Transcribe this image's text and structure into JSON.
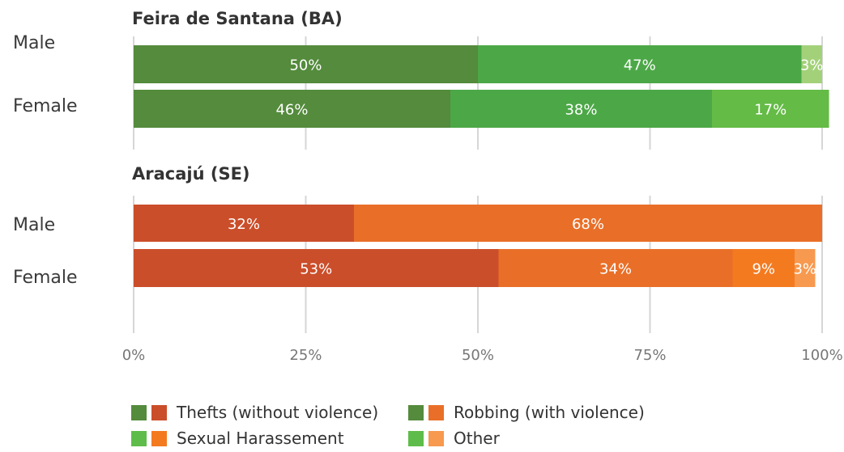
{
  "chart_data": {
    "type": "bar",
    "orientation": "horizontal",
    "stacked": true,
    "percent": true,
    "xlim": [
      0,
      100
    ],
    "xticks": [
      "0%",
      "25%",
      "50%",
      "75%",
      "100%"
    ],
    "grid": true,
    "legend_position": "bottom",
    "panels": [
      {
        "title": "Feira de Santana (BA)",
        "categories": [
          "Male",
          "Female"
        ],
        "series": [
          {
            "name": "Thefts (without violence)",
            "values": [
              50,
              46
            ],
            "labels": [
              "50%",
              "46%"
            ],
            "color": "#548b3c"
          },
          {
            "name": "Robbing (with violence)",
            "values": [
              47,
              38
            ],
            "labels": [
              "47%",
              "38%"
            ],
            "color": "#4ca847"
          },
          {
            "name": "Sexual Harassement",
            "values": [
              0,
              0
            ],
            "labels": [
              "",
              ""
            ],
            "color": "#5ebd4a"
          },
          {
            "name": "Other",
            "values": [
              3,
              17
            ],
            "labels": [
              "3%",
              "17%"
            ],
            "color_male": "#a3d17a",
            "color_female": "#64bb46"
          }
        ]
      },
      {
        "title": "Aracajú (SE)",
        "categories": [
          "Male",
          "Female"
        ],
        "series": [
          {
            "name": "Thefts (without violence)",
            "values": [
              32,
              53
            ],
            "labels": [
              "32%",
              "53%"
            ],
            "color": "#cb4e2a"
          },
          {
            "name": "Robbing (with violence)",
            "values": [
              68,
              34
            ],
            "labels": [
              "68%",
              "34%"
            ],
            "color": "#e96f28"
          },
          {
            "name": "Sexual Harassement",
            "values": [
              0,
              9
            ],
            "labels": [
              "",
              "9%"
            ],
            "color": "#f47a20"
          },
          {
            "name": "Other",
            "values": [
              0,
              3
            ],
            "labels": [
              "",
              "3%"
            ],
            "color": "#f7994f"
          }
        ]
      }
    ]
  },
  "legend": {
    "items": [
      {
        "label": "Thefts (without violence)",
        "colors": [
          "#548b3c",
          "#cb4e2a"
        ]
      },
      {
        "label": "Robbing (with violence)",
        "colors": [
          "#548b3c",
          "#e96f28"
        ]
      },
      {
        "label": "Sexual Harassement",
        "colors": [
          "#5ebd4a",
          "#f47a20"
        ]
      },
      {
        "label": "Other",
        "colors": [
          "#5ebd4a",
          "#f7994f"
        ]
      }
    ]
  }
}
